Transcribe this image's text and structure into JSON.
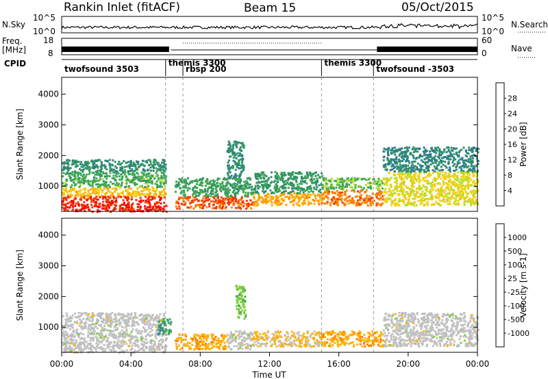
{
  "header": {
    "station": "Rankin Inlet (fitACF)",
    "beam": "Beam 15",
    "date": "05/Oct/2015"
  },
  "summary_panels": {
    "nsky": {
      "label": "N.Sky",
      "right_label": "N.Search",
      "left_ticks": [
        "10^5",
        "10^0"
      ],
      "right_ticks": [
        "10^5",
        "10^0"
      ]
    },
    "freq": {
      "label_line1": "Freq.",
      "label_line2": "[MHz]",
      "right_label": "Nave",
      "left_ticks": [
        "18",
        "8"
      ],
      "right_ticks": [
        "60",
        "0"
      ]
    }
  },
  "cpid": {
    "label": "CPID",
    "segments": [
      {
        "name": "twofsound 3503",
        "start_hour": 0,
        "end_hour": 6.0
      },
      {
        "name": "themis 3300",
        "start_hour": 6.0,
        "end_hour": 7.0
      },
      {
        "name": "rbsp 200",
        "start_hour": 7.0,
        "end_hour": 15.0
      },
      {
        "name": "themis 3300",
        "start_hour": 15.0,
        "end_hour": 18.0
      },
      {
        "name": "twofsound -3503",
        "start_hour": 18.0,
        "end_hour": 24.0
      }
    ]
  },
  "chart_data": [
    {
      "type": "heatmap",
      "name": "power-panel",
      "ylabel": "Slant Range [km]",
      "ylim": [
        180,
        4550
      ],
      "yticks": [
        1000,
        2000,
        3000,
        4000
      ],
      "xlim_hours": [
        0,
        24
      ],
      "colorbar": {
        "label": "Power [dB]",
        "ticks": [
          "28",
          "24",
          "20",
          "16",
          "12",
          "8",
          "4"
        ],
        "colors": [
          "#ff0000",
          "#f03a00",
          "#ff8000",
          "#ffa500",
          "#f4cf10",
          "#b6dd2a",
          "#40a850",
          "#2f8f6a",
          "#2c7a8f",
          "#1c3cc8",
          "#0a1ee6"
        ],
        "range": [
          0,
          32
        ]
      },
      "regions": [
        {
          "x": [
            0.0,
            6.0
          ],
          "y": [
            200,
            700
          ],
          "level": 29
        },
        {
          "x": [
            0.0,
            6.0
          ],
          "y": [
            700,
            1000
          ],
          "level": 20
        },
        {
          "x": [
            0.0,
            6.0
          ],
          "y": [
            1000,
            1500
          ],
          "level": 13
        },
        {
          "x": [
            0.0,
            6.0
          ],
          "y": [
            1500,
            1900
          ],
          "level": 10
        },
        {
          "x": [
            6.5,
            11.0
          ],
          "y": [
            300,
            700
          ],
          "level": 27
        },
        {
          "x": [
            6.5,
            11.0
          ],
          "y": [
            700,
            1300
          ],
          "level": 12
        },
        {
          "x": [
            9.5,
            10.5
          ],
          "y": [
            1300,
            2500
          ],
          "level": 10
        },
        {
          "x": [
            11.0,
            15.0
          ],
          "y": [
            400,
            800
          ],
          "level": 22
        },
        {
          "x": [
            11.0,
            15.0
          ],
          "y": [
            800,
            1500
          ],
          "level": 11
        },
        {
          "x": [
            15.0,
            18.5
          ],
          "y": [
            400,
            900
          ],
          "level": 25
        },
        {
          "x": [
            15.0,
            18.5
          ],
          "y": [
            900,
            1300
          ],
          "level": 14
        },
        {
          "x": [
            18.5,
            24.0
          ],
          "y": [
            400,
            1500
          ],
          "level": 18
        },
        {
          "x": [
            18.5,
            24.0
          ],
          "y": [
            1500,
            2300
          ],
          "level": 9
        }
      ]
    },
    {
      "type": "heatmap",
      "name": "velocity-panel",
      "ylabel": "Slant Range [km]",
      "ylim": [
        180,
        4550
      ],
      "yticks": [
        1000,
        2000,
        3000,
        4000
      ],
      "xlim_hours": [
        0,
        24
      ],
      "colorbar": {
        "label": "Velocity [m s-1]",
        "ticks": [
          "1000",
          "500",
          "100",
          "25",
          "-25",
          "-100",
          "-500",
          "-1000"
        ],
        "colors": [
          "#2848c8",
          "#2e7fa0",
          "#3da858",
          "#7fce3a",
          "#c0c0c0",
          "#ffb000",
          "#ff7a00",
          "#ff4000",
          "#ff0000"
        ],
        "range": [
          -1200,
          1200
        ]
      },
      "regions": [
        {
          "x": [
            0.0,
            6.0
          ],
          "y": [
            200,
            700
          ],
          "value": 0
        },
        {
          "x": [
            0.0,
            6.0
          ],
          "y": [
            700,
            1500
          ],
          "value": 0
        },
        {
          "x": [
            6.5,
            9.5
          ],
          "y": [
            300,
            800
          ],
          "value": -300
        },
        {
          "x": [
            9.5,
            11.0
          ],
          "y": [
            300,
            900
          ],
          "value": 0
        },
        {
          "x": [
            11.0,
            15.0
          ],
          "y": [
            400,
            900
          ],
          "value": -150
        },
        {
          "x": [
            15.0,
            18.5
          ],
          "y": [
            400,
            900
          ],
          "value": -300
        },
        {
          "x": [
            18.5,
            24.0
          ],
          "y": [
            400,
            1500
          ],
          "value": 0
        },
        {
          "x": [
            5.5,
            6.3
          ],
          "y": [
            800,
            1300
          ],
          "value": 600
        },
        {
          "x": [
            10.0,
            10.6
          ],
          "y": [
            1300,
            2400
          ],
          "value": 300
        }
      ]
    }
  ],
  "x_axis": {
    "label": "Time UT",
    "ticks": [
      "00:00",
      "04:00",
      "08:00",
      "12:00",
      "16:00",
      "20:00",
      "00:00"
    ]
  }
}
